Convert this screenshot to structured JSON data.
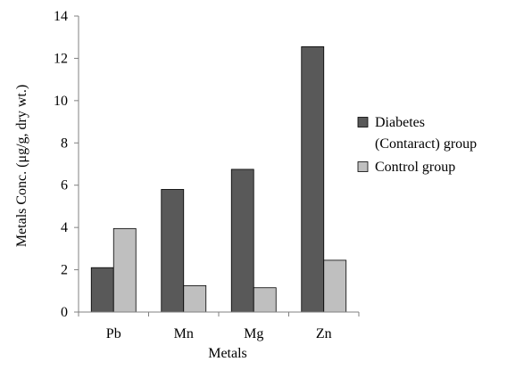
{
  "chart_data": {
    "type": "bar",
    "title": "",
    "xlabel": "Metals",
    "ylabel": "Metals Conc. (μg/g, dry wt.)",
    "categories": [
      "Pb",
      "Mn",
      "Mg",
      "Zn"
    ],
    "series": [
      {
        "name": "Diabetes (Contaract) group",
        "legend_lines": [
          "Diabetes",
          "(Contaract) group"
        ],
        "color": "#595959",
        "values": [
          2.1,
          5.8,
          6.75,
          12.55
        ]
      },
      {
        "name": "Control group",
        "legend_lines": [
          "Control group"
        ],
        "color": "#bfbfbf",
        "values": [
          3.95,
          1.25,
          1.15,
          2.45
        ]
      }
    ],
    "ylim": [
      0,
      14
    ],
    "yticks": [
      0,
      2,
      4,
      6,
      8,
      10,
      12,
      14
    ],
    "grid": false,
    "legend_position": "right",
    "axis_color": "#808080",
    "bar_outline_color": "#000000"
  }
}
